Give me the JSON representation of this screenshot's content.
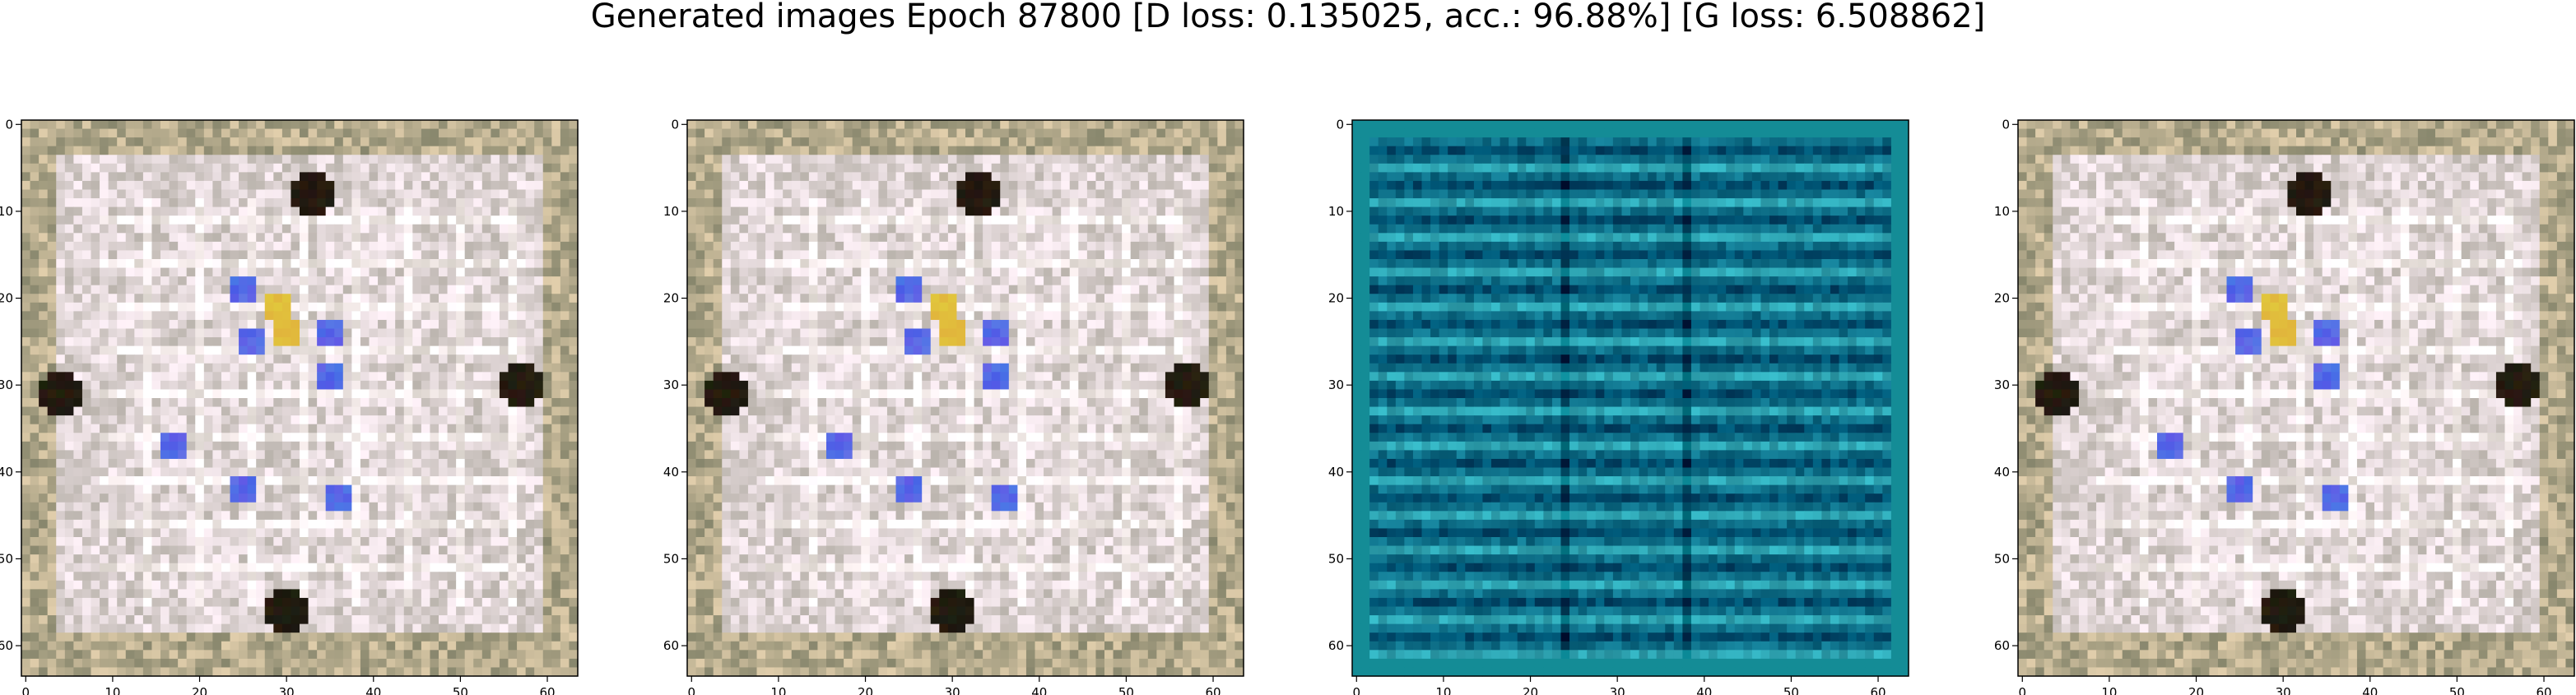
{
  "title": "Generated images Epoch 87800 [D loss: 0.135025, acc.: 96.88%] [G loss: 6.508862]",
  "chart_data": [
    {
      "type": "heatmap",
      "description_kind": "image",
      "palette": "pale-pink-white-beige",
      "base_color": "#ddd3d3",
      "accent_colors": [
        "#4d5cf0",
        "#e0b23a",
        "#1a140c",
        "#5a5e3a"
      ],
      "x_ticks": [
        0,
        10,
        20,
        30,
        40,
        50,
        60
      ],
      "y_ticks": [
        0,
        10,
        20,
        30,
        40,
        50,
        60
      ],
      "xlim": [
        -0.5,
        63.5
      ],
      "ylim": [
        63.5,
        -0.5
      ],
      "grid": false
    },
    {
      "type": "heatmap",
      "description_kind": "image",
      "palette": "pale-pink-white-beige",
      "base_color": "#ddd3d3",
      "accent_colors": [
        "#4d5cf0",
        "#e0b23a",
        "#1a140c",
        "#5a5e3a"
      ],
      "x_ticks": [
        0,
        10,
        20,
        30,
        40,
        50,
        60
      ],
      "y_ticks": [
        0,
        10,
        20,
        30,
        40,
        50,
        60
      ],
      "xlim": [
        -0.5,
        63.5
      ],
      "ylim": [
        63.5,
        -0.5
      ],
      "grid": false
    },
    {
      "type": "heatmap",
      "description_kind": "image",
      "palette": "teal-cyan",
      "base_color": "#0e6f88",
      "accent_colors": [
        "#3fe0e8",
        "#0a3d4a",
        "#12a0a0"
      ],
      "x_ticks": [
        0,
        10,
        20,
        30,
        40,
        50,
        60
      ],
      "y_ticks": [
        0,
        10,
        20,
        30,
        40,
        50,
        60
      ],
      "xlim": [
        -0.5,
        63.5
      ],
      "ylim": [
        63.5,
        -0.5
      ],
      "grid": false
    },
    {
      "type": "heatmap",
      "description_kind": "image",
      "palette": "pale-pink-white-beige",
      "base_color": "#ddd3d3",
      "accent_colors": [
        "#4d5cf0",
        "#e0b23a",
        "#1a140c",
        "#5a5e3a"
      ],
      "x_ticks": [
        0,
        10,
        20,
        30,
        40,
        50,
        60
      ],
      "y_ticks": [
        0,
        10,
        20,
        30,
        40,
        50,
        60
      ],
      "xlim": [
        -0.5,
        63.5
      ],
      "ylim": [
        63.5,
        -0.5
      ],
      "grid": false
    }
  ]
}
